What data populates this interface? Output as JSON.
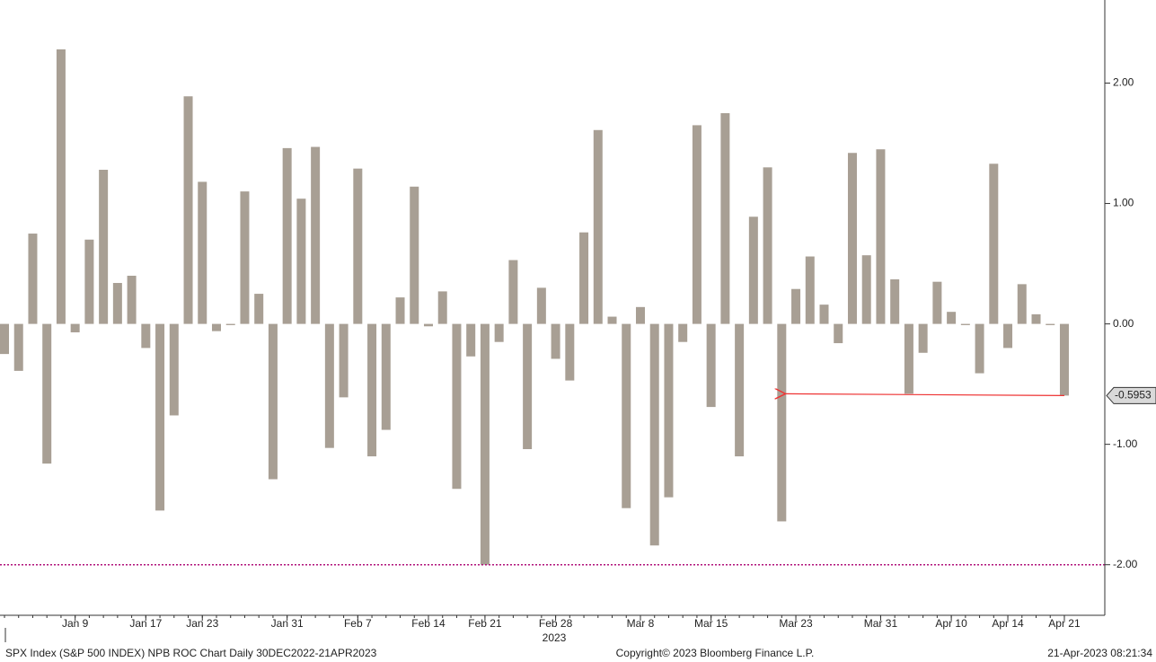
{
  "chart_data": {
    "type": "bar",
    "subtitle": "2023",
    "footer_left": "SPX Index (S&P 500 INDEX) NPB ROC Chart  Daily 30DEC2022-21APR2023",
    "footer_center": "Copyright© 2023 Bloomberg Finance L.P.",
    "footer_right": "21-Apr-2023 08:21:34",
    "categories": [
      null,
      null,
      null,
      null,
      null,
      "Jan 9",
      null,
      null,
      null,
      null,
      "Jan 17",
      null,
      null,
      null,
      "Jan 23",
      null,
      null,
      null,
      null,
      null,
      "Jan 31",
      null,
      null,
      null,
      null,
      "Feb 7",
      null,
      null,
      null,
      null,
      "Feb 14",
      null,
      null,
      null,
      "Feb 21",
      null,
      null,
      null,
      null,
      "Feb 28",
      null,
      null,
      null,
      null,
      null,
      "Mar 8",
      null,
      null,
      null,
      null,
      "Mar 15",
      null,
      null,
      null,
      null,
      null,
      "Mar 23",
      null,
      null,
      null,
      null,
      null,
      "Mar 31",
      null,
      null,
      null,
      null,
      "Apr 10",
      null,
      null,
      null,
      "Apr 14",
      null,
      null,
      null,
      "Apr 21"
    ],
    "values": [
      -0.25,
      -0.39,
      0.75,
      -1.16,
      2.28,
      -0.07,
      0.7,
      1.28,
      0.34,
      0.4,
      -0.2,
      -1.55,
      -0.76,
      1.89,
      1.18,
      -0.06,
      -0.01,
      1.1,
      0.25,
      -1.29,
      1.46,
      1.04,
      1.47,
      -1.03,
      -0.61,
      1.29,
      -1.1,
      -0.88,
      0.22,
      1.14,
      -0.02,
      0.27,
      -1.37,
      -0.27,
      -2.0,
      -0.15,
      0.53,
      -1.04,
      0.3,
      -0.29,
      -0.47,
      0.76,
      1.61,
      0.06,
      -1.53,
      0.14,
      -1.84,
      -1.44,
      -0.15,
      1.65,
      -0.69,
      1.75,
      -1.1,
      0.89,
      1.3,
      -1.64,
      0.29,
      0.56,
      0.16,
      -0.16,
      1.42,
      0.57,
      1.45,
      0.37,
      -0.58,
      -0.24,
      0.35,
      0.1,
      -0.01,
      -0.41,
      1.33,
      -0.2,
      0.33,
      0.08,
      -0.01,
      -0.5953
    ],
    "color": "#a89f94",
    "ylim": [
      -2.42,
      2.69
    ],
    "yticks": [
      {
        "value": -2,
        "label": "-2.00"
      },
      {
        "value": -1,
        "label": "-1.00"
      },
      {
        "value": 0,
        "label": "0.00"
      },
      {
        "value": 1,
        "label": "1.00"
      },
      {
        "value": 2,
        "label": "2.00"
      }
    ],
    "hline": {
      "value": -2,
      "color": "#b0107a"
    }
  }
}
